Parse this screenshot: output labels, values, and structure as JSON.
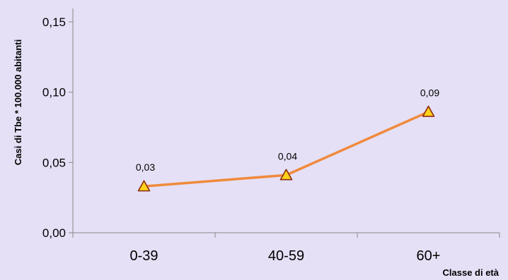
{
  "chart_data": {
    "type": "line",
    "categories": [
      "0-39",
      "40-59",
      "60+"
    ],
    "series": [
      {
        "values": [
          0.033,
          0.041,
          0.086
        ],
        "labels": [
          "0,03",
          "0,04",
          "0,09"
        ]
      }
    ],
    "xlabel": "Classe di età",
    "ylabel": "Casi di Tbe * 100.000 abitanti",
    "ylim": [
      0,
      0.15
    ],
    "yticks": [
      "0,00",
      "0,05",
      "0,10",
      "0,15"
    ],
    "ytick_values": [
      0,
      0.05,
      0.1,
      0.15
    ],
    "grid": false,
    "line_color": "#f08a3c",
    "marker_fill": "#ffd21a",
    "marker_stroke": "#8b2a10",
    "background_color": "#e5e0f6"
  }
}
